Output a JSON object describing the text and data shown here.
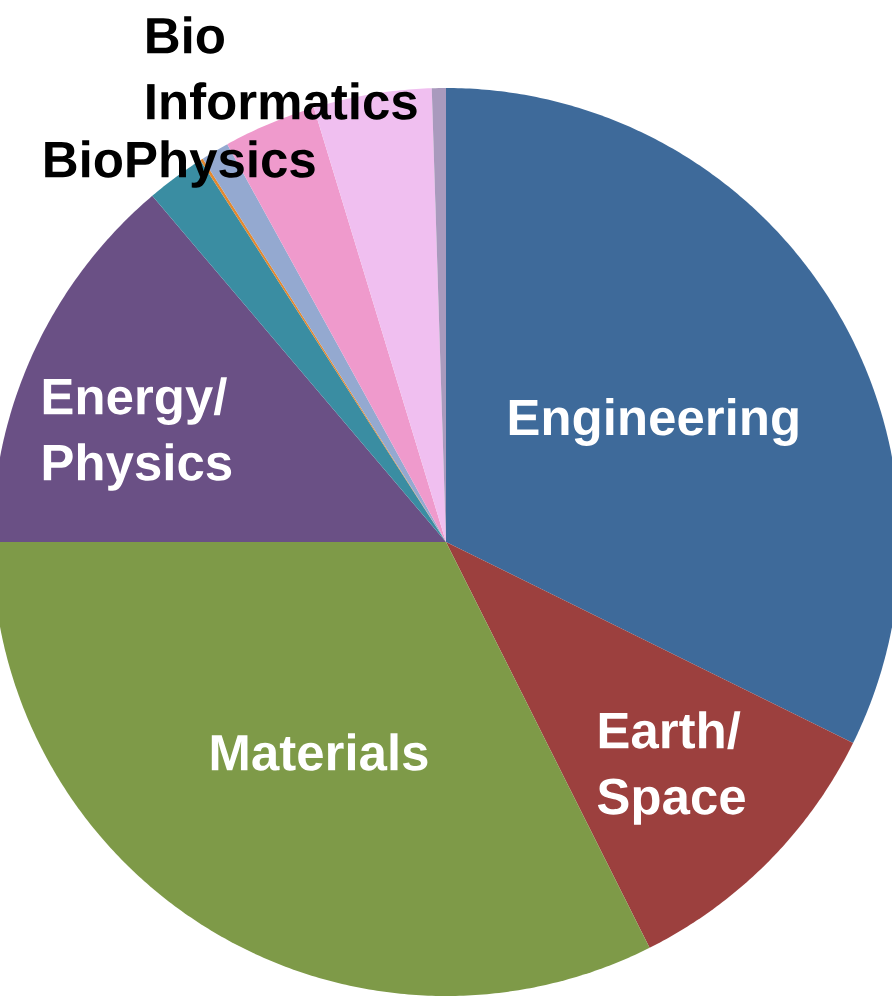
{
  "chart_data": {
    "type": "pie",
    "categories": [
      "Engineering",
      "Earth/ Space",
      "Materials",
      "Energy/ Physics",
      "BioPhysics",
      null,
      null,
      "Bio Informatics",
      null,
      null
    ],
    "values": [
      32.3,
      10.3,
      32.4,
      13.8,
      2.1,
      0.1,
      1.0,
      3.3,
      4.2,
      0.5
    ],
    "colors": [
      "#3e6a9a",
      "#9c403e",
      "#7e9a48",
      "#6a5085",
      "#3a8da2",
      "#e3892f",
      "#94a9d0",
      "#ef9acc",
      "#f0bff0",
      "#a99abd"
    ]
  }
}
